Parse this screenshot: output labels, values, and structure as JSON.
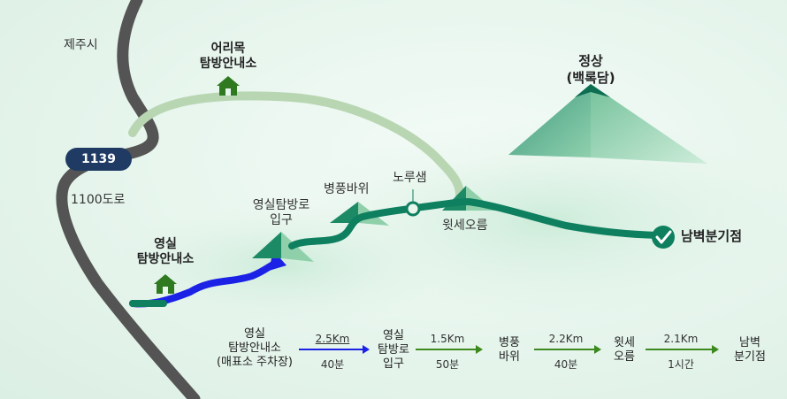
{
  "map": {
    "labels": {
      "jeju_city": "제주시",
      "road_1100": "1100도로",
      "road_1139": "1139",
      "eorimok_line1": "어리목",
      "eorimok_line2": "탐방안내소",
      "summit_line1": "정상",
      "summit_line2": "(백록담)",
      "yeongsil_line1": "영실",
      "yeongsil_line2": "탐방안내소",
      "yeongsil_entrance_line1": "영실탐방로",
      "yeongsil_entrance_line2": "입구",
      "byeongpung": "병풍바위",
      "norusaem": "노루샘",
      "witse": "윗세오름",
      "nambyeok": "남벽분기점"
    },
    "colors": {
      "road": "#545454",
      "trail_eorimok": "#b9d6b3",
      "trail_yeongsil": "#0e7f5f",
      "trail_lower": "#1b22e6",
      "accent_green": "#3c7a1e"
    }
  },
  "legend": {
    "stops": [
      {
        "lines": [
          "영실",
          "탐방안내소",
          "(매표소 주차장)"
        ]
      },
      {
        "lines": [
          "영실",
          "탐방로",
          "입구"
        ]
      },
      {
        "lines": [
          "병풍",
          "바위"
        ]
      },
      {
        "lines": [
          "윗세",
          "오름"
        ]
      },
      {
        "lines": [
          "남벽",
          "분기점"
        ]
      }
    ],
    "segments": [
      {
        "distance": "2.5Km",
        "time": "40분",
        "color": "#1b22e6"
      },
      {
        "distance": "1.5Km",
        "time": "50분",
        "color": "#3c8a1e"
      },
      {
        "distance": "2.2Km",
        "time": "40분",
        "color": "#3c8a1e"
      },
      {
        "distance": "2.1Km",
        "time": "1시간",
        "color": "#3c8a1e"
      }
    ]
  }
}
